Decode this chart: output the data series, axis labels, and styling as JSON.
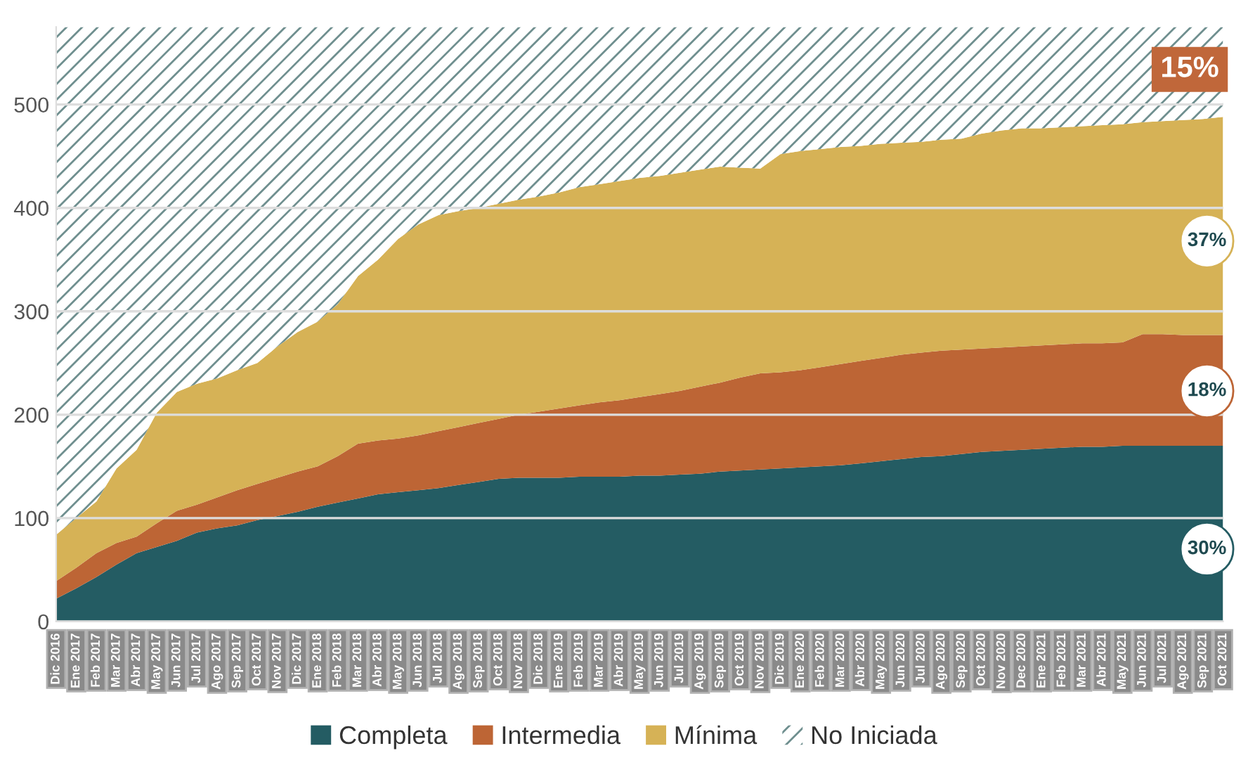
{
  "chart_data": {
    "type": "area",
    "stacked": true,
    "categories": [
      "Dic 2016",
      "Ene 2017",
      "Feb 2017",
      "Mar 2017",
      "Abr 2017",
      "May 2017",
      "Jun 2017",
      "Jul 2017",
      "Ago 2017",
      "Sep 2017",
      "Oct 2017",
      "Nov 2017",
      "Dic 2017",
      "Ene 2018",
      "Feb 2018",
      "Mar 2018",
      "Abr 2018",
      "May 2018",
      "Jun 2018",
      "Jul 2018",
      "Ago 2018",
      "Sep 2018",
      "Oct 2018",
      "Nov 2018",
      "Dic 2018",
      "Ene 2019",
      "Feb 2019",
      "Mar 2019",
      "Abr 2019",
      "May 2019",
      "Jun 2019",
      "Jul 2019",
      "Ago 2019",
      "Sep 2019",
      "Oct 2019",
      "Nov 2019",
      "Dic 2019",
      "Ene 2020",
      "Feb 2020",
      "Mar 2020",
      "Abr 2020",
      "May 2020",
      "Jun 2020",
      "Jul 2020",
      "Ago 2020",
      "Sep 2020",
      "Oct 2020",
      "Nov 2020",
      "Dec 2020",
      "Ene 2021",
      "Feb 2021",
      "Mar 2021",
      "Abr 2021",
      "May 2021",
      "Jun 2021",
      "Jul 2021",
      "Ago 2021",
      "Sep 2021",
      "Oct 2021"
    ],
    "series": [
      {
        "name": "Completa",
        "color": "#245c63",
        "values": [
          22,
          32,
          43,
          55,
          66,
          72,
          78,
          86,
          90,
          93,
          98,
          102,
          106,
          111,
          115,
          119,
          123,
          125,
          127,
          129,
          132,
          135,
          138,
          139,
          139,
          139,
          140,
          140,
          140,
          141,
          141,
          142,
          143,
          145,
          146,
          147,
          148,
          149,
          150,
          151,
          153,
          155,
          157,
          159,
          160,
          162,
          164,
          165,
          166,
          167,
          168,
          169,
          169,
          170,
          170,
          170,
          170,
          170,
          170
        ]
      },
      {
        "name": "Intermedia",
        "color": "#bd6535",
        "values": [
          17,
          20,
          23,
          21,
          16,
          23,
          29,
          27,
          30,
          34,
          35,
          37,
          39,
          39,
          45,
          53,
          52,
          52,
          53,
          55,
          56,
          57,
          58,
          61,
          64,
          67,
          69,
          72,
          74,
          76,
          79,
          81,
          84,
          86,
          90,
          93,
          93,
          94,
          96,
          98,
          99,
          100,
          101,
          101,
          102,
          101,
          100,
          100,
          100,
          100,
          100,
          100,
          100,
          100,
          108,
          108,
          107,
          107,
          107
        ]
      },
      {
        "name": "Mínima",
        "color": "#d6b256",
        "values": [
          45,
          48,
          50,
          72,
          84,
          107,
          115,
          117,
          115,
          116,
          117,
          127,
          135,
          140,
          147,
          162,
          175,
          193,
          204,
          209,
          209,
          208,
          208,
          208,
          208,
          209,
          211,
          211,
          212,
          212,
          211,
          211,
          210,
          209,
          203,
          198,
          211,
          212,
          211,
          210,
          208,
          207,
          205,
          204,
          204,
          204,
          208,
          210,
          211,
          210,
          210,
          210,
          211,
          211,
          205,
          206,
          208,
          209,
          211
        ]
      },
      {
        "name": "No Iniciada",
        "color": "#6f8f8f",
        "values": [
          491,
          475,
          459,
          427,
          409,
          373,
          353,
          345,
          340,
          332,
          325,
          309,
          295,
          285,
          268,
          241,
          225,
          205,
          191,
          182,
          178,
          175,
          171,
          167,
          164,
          160,
          155,
          152,
          149,
          146,
          144,
          141,
          138,
          135,
          136,
          137,
          123,
          120,
          118,
          116,
          115,
          113,
          112,
          111,
          109,
          108,
          103,
          100,
          98,
          98,
          97,
          96,
          95,
          94,
          92,
          91,
          90,
          89,
          87
        ]
      }
    ],
    "ylim": [
      0,
      575
    ],
    "yticks": [
      0,
      100,
      200,
      300,
      400,
      500
    ],
    "grid": "y",
    "legend": "bottom",
    "annotations": [
      {
        "text": "15%",
        "x": "Oct 2021",
        "y": 534
      },
      {
        "text": "37%",
        "x": "Oct 2021",
        "y": 368
      },
      {
        "text": "18%",
        "x": "Oct 2021",
        "y": 223
      },
      {
        "text": "30%",
        "x": "Oct 2021",
        "y": 70
      }
    ]
  }
}
